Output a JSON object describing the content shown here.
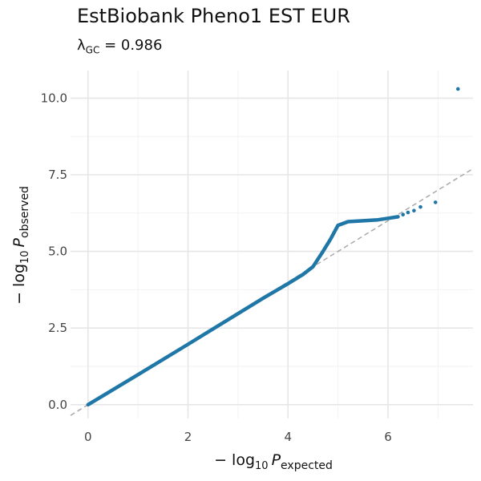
{
  "chart_data": {
    "type": "scatter",
    "title": "EstBiobank Pheno1 EST EUR",
    "subtitle": {
      "lambda_symbol": "λ",
      "lambda_subscript": "GC",
      "relation": " = ",
      "value": "0.986"
    },
    "xlabel": {
      "prefix": "− log",
      "base": "10",
      "symbol": "P",
      "subscript": "expected"
    },
    "ylabel": {
      "prefix": "− log",
      "base": "10",
      "symbol": "P",
      "subscript": "observed"
    },
    "xlim": [
      -0.35,
      7.7
    ],
    "ylim": [
      -0.45,
      10.9
    ],
    "x_ticks": [
      0,
      2,
      4,
      6
    ],
    "x_tick_labels": [
      "0",
      "2",
      "4",
      "6"
    ],
    "y_ticks": [
      0,
      2.5,
      5,
      7.5,
      10
    ],
    "y_tick_labels": [
      "0.0",
      "2.5",
      "5.0",
      "7.5",
      "10.0"
    ],
    "grid": true,
    "reference_line": {
      "type": "identity",
      "color": "#aaaaaa",
      "dashed": true
    },
    "point_color": "#1f77a8",
    "series_curve": [
      [
        0.0,
        0.0
      ],
      [
        1.0,
        0.98
      ],
      [
        2.0,
        1.97
      ],
      [
        3.0,
        2.97
      ],
      [
        3.5,
        3.47
      ],
      [
        4.0,
        3.95
      ],
      [
        4.3,
        4.25
      ],
      [
        4.5,
        4.5
      ],
      [
        4.7,
        5.0
      ],
      [
        4.85,
        5.4
      ],
      [
        5.0,
        5.85
      ],
      [
        5.2,
        5.97
      ],
      [
        5.5,
        6.0
      ],
      [
        5.8,
        6.03
      ],
      [
        6.0,
        6.08
      ],
      [
        6.2,
        6.13
      ]
    ],
    "points": [
      [
        6.3,
        6.2
      ],
      [
        6.4,
        6.27
      ],
      [
        6.52,
        6.33
      ],
      [
        6.65,
        6.45
      ],
      [
        6.95,
        6.6
      ],
      [
        7.4,
        10.3
      ]
    ]
  }
}
